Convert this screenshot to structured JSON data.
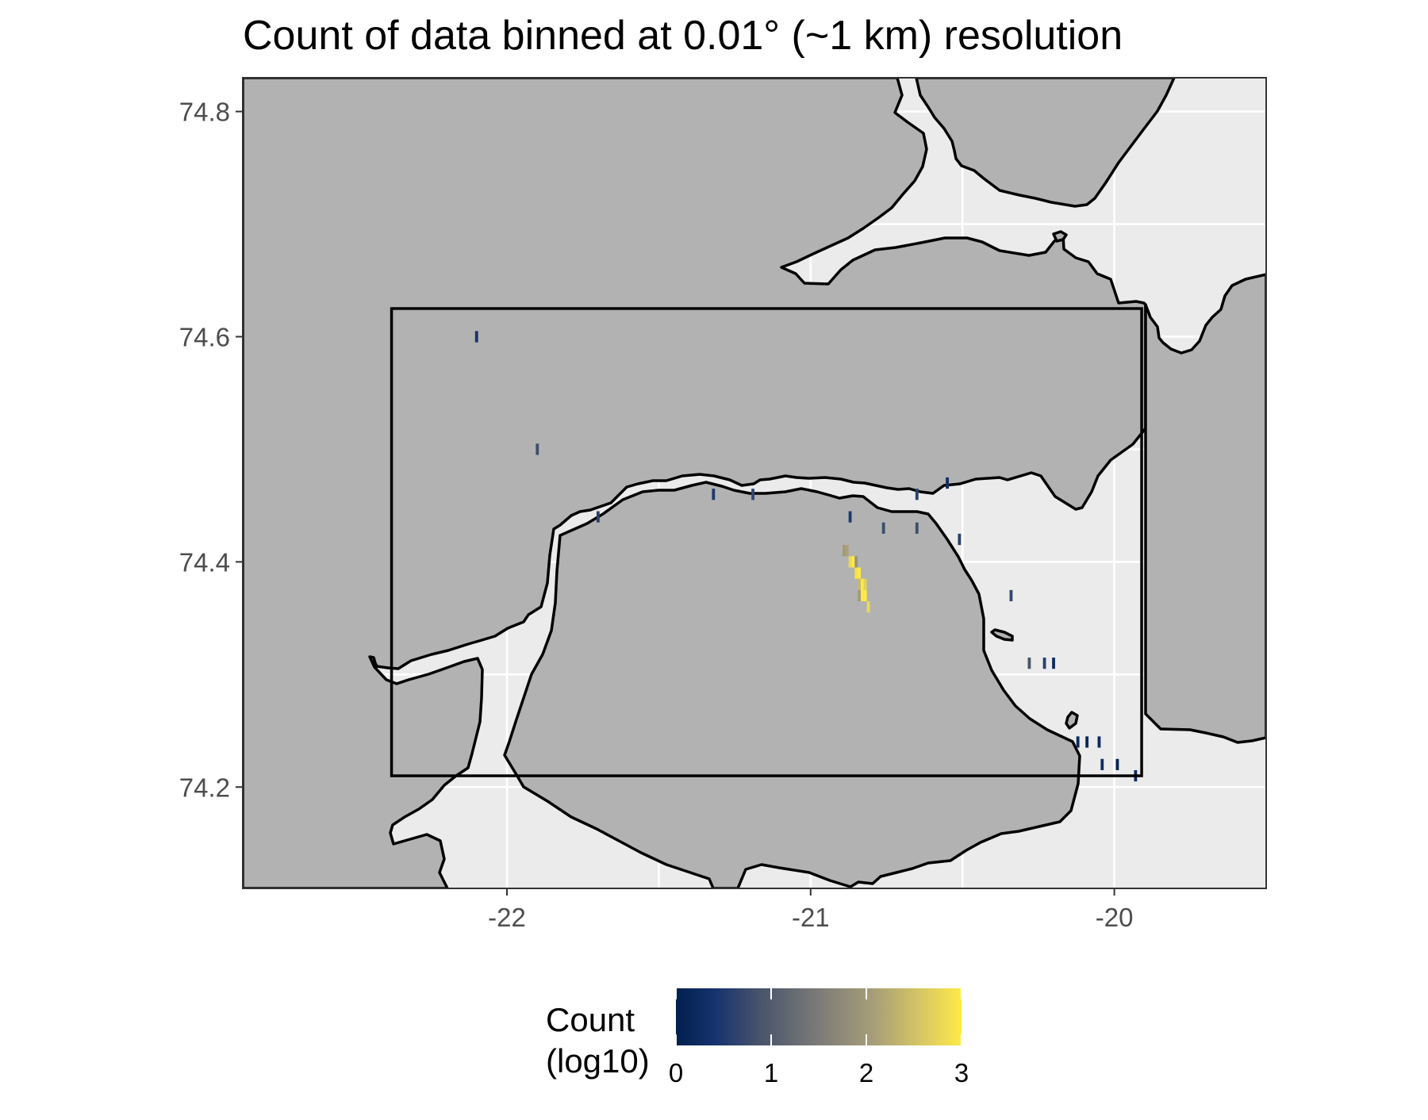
{
  "title": "Count of data binned at 0.01° (~1 km) resolution",
  "colors": {
    "land": "#b2b2b2",
    "water": "#ebebeb",
    "coastline": "#000000",
    "grid": "#ffffff",
    "scale_low": "#00204d",
    "scale_mid": "#7c7b78",
    "scale_high": "#ffea46"
  },
  "chart_data": {
    "type": "heatmap",
    "title": "Count of data binned at 0.01° (~1 km) resolution",
    "xlabel": "",
    "ylabel": "",
    "xlim": [
      -22.87,
      -19.5
    ],
    "ylim": [
      74.11,
      74.83
    ],
    "x_ticks": [
      "-22",
      "-21",
      "-20"
    ],
    "y_ticks": [
      "74.2",
      "74.4",
      "74.6",
      "74.8"
    ],
    "grid": true,
    "legend": {
      "title_line1": "Count",
      "title_line2": "(log10)",
      "position": "bottom",
      "colormap": "cividis",
      "range": [
        0,
        3
      ],
      "ticks": [
        "0",
        "1",
        "2",
        "3"
      ]
    },
    "study_box": {
      "lon": [
        -22.38,
        -19.91
      ],
      "lat": [
        74.21,
        74.625
      ]
    },
    "bins": [
      {
        "lon": -22.1,
        "lat": 74.6,
        "log_count": 0.4
      },
      {
        "lon": -21.9,
        "lat": 74.5,
        "log_count": 0.8
      },
      {
        "lon": -21.7,
        "lat": 74.44,
        "log_count": 0.6
      },
      {
        "lon": -21.32,
        "lat": 74.46,
        "log_count": 0.5
      },
      {
        "lon": -21.19,
        "lat": 74.46,
        "log_count": 0.7
      },
      {
        "lon": -20.87,
        "lat": 74.44,
        "log_count": 0.5
      },
      {
        "lon": -20.76,
        "lat": 74.43,
        "log_count": 0.8
      },
      {
        "lon": -20.65,
        "lat": 74.46,
        "log_count": 0.6
      },
      {
        "lon": -20.65,
        "lat": 74.43,
        "log_count": 0.8
      },
      {
        "lon": -20.55,
        "lat": 74.47,
        "log_count": 0.3
      },
      {
        "lon": -20.51,
        "lat": 74.42,
        "log_count": 0.6
      },
      {
        "lon": -20.34,
        "lat": 74.37,
        "log_count": 0.7
      },
      {
        "lon": -20.28,
        "lat": 74.31,
        "log_count": 0.9
      },
      {
        "lon": -20.23,
        "lat": 74.31,
        "log_count": 0.6
      },
      {
        "lon": -20.2,
        "lat": 74.31,
        "log_count": 0.3
      },
      {
        "lon": -20.12,
        "lat": 74.24,
        "log_count": 0.2
      },
      {
        "lon": -20.09,
        "lat": 74.24,
        "log_count": 0.1
      },
      {
        "lon": -20.05,
        "lat": 74.24,
        "log_count": 0.2
      },
      {
        "lon": -20.04,
        "lat": 74.22,
        "log_count": 0.3
      },
      {
        "lon": -19.99,
        "lat": 74.22,
        "log_count": 0.1
      },
      {
        "lon": -19.93,
        "lat": 74.21,
        "log_count": 0.2
      },
      {
        "lon": -20.89,
        "lat": 74.41,
        "log_count": 2.0
      },
      {
        "lon": -20.88,
        "lat": 74.41,
        "log_count": 2.1
      },
      {
        "lon": -20.87,
        "lat": 74.4,
        "log_count": 2.8
      },
      {
        "lon": -20.86,
        "lat": 74.4,
        "log_count": 3.0
      },
      {
        "lon": -20.85,
        "lat": 74.39,
        "log_count": 2.9
      },
      {
        "lon": -20.84,
        "lat": 74.39,
        "log_count": 3.0
      },
      {
        "lon": -20.83,
        "lat": 74.38,
        "log_count": 3.0
      },
      {
        "lon": -20.82,
        "lat": 74.38,
        "log_count": 2.7
      },
      {
        "lon": -20.84,
        "lat": 74.37,
        "log_count": 2.0
      },
      {
        "lon": -20.83,
        "lat": 74.37,
        "log_count": 3.0
      },
      {
        "lon": -20.82,
        "lat": 74.37,
        "log_count": 3.0
      },
      {
        "lon": -20.81,
        "lat": 74.36,
        "log_count": 2.8
      },
      {
        "lon": -20.85,
        "lat": 74.4,
        "log_count": 1.9
      },
      {
        "lon": -20.84,
        "lat": 74.38,
        "log_count": 2.4
      }
    ]
  }
}
